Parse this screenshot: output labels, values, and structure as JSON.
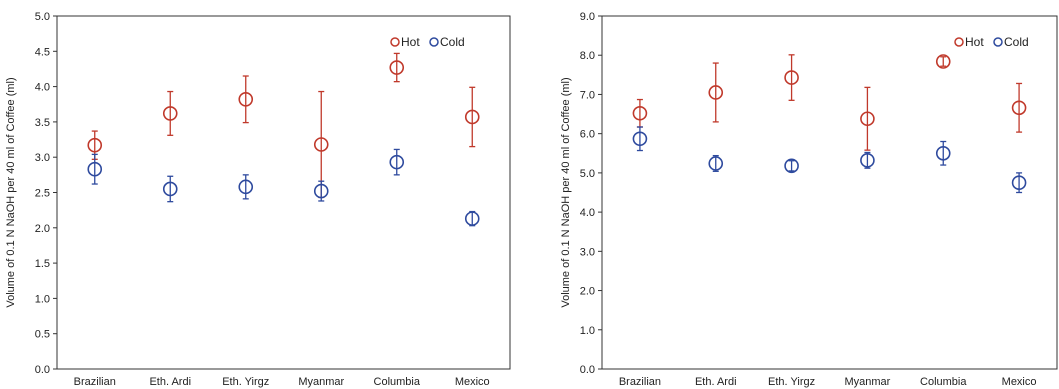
{
  "chart_data": [
    {
      "type": "scatter",
      "title": "",
      "xlabel": "",
      "ylabel": "Volume of 0.1 N NaOH per 40 ml of Coffee (ml)",
      "ylim": [
        0,
        5
      ],
      "yticks": [
        "0.0",
        "0.5",
        "1.0",
        "1.5",
        "2.0",
        "2.5",
        "3.0",
        "3.5",
        "4.0",
        "4.5",
        "5.0"
      ],
      "categories": [
        "Brazilian",
        "Eth. Ardi",
        "Eth. Yirgz",
        "Myanmar",
        "Columbia",
        "Mexico"
      ],
      "grid": false,
      "legend_position": "top-right",
      "series": [
        {
          "name": "Hot",
          "color": "#c0392b",
          "values": [
            3.17,
            3.62,
            3.82,
            3.18,
            4.27,
            3.57
          ],
          "errors": [
            0.2,
            0.31,
            0.33,
            0.75,
            0.2,
            0.42
          ]
        },
        {
          "name": "Cold",
          "color": "#2e4a9e",
          "values": [
            2.83,
            2.55,
            2.58,
            2.52,
            2.93,
            2.13
          ],
          "errors": [
            0.21,
            0.18,
            0.17,
            0.14,
            0.18,
            0.1
          ]
        }
      ]
    },
    {
      "type": "scatter",
      "title": "",
      "xlabel": "",
      "ylabel": "Volume of 0.1 N NaOH per 40 ml of Coffee (ml)",
      "ylim": [
        0,
        9
      ],
      "yticks": [
        "0.0",
        "1.0",
        "2.0",
        "3.0",
        "4.0",
        "5.0",
        "6.0",
        "7.0",
        "8.0",
        "9.0"
      ],
      "categories": [
        "Brazilian",
        "Eth. Ardi",
        "Eth. Yirgz",
        "Myanmar",
        "Columbia",
        "Mexico"
      ],
      "grid": false,
      "legend_position": "top-right",
      "series": [
        {
          "name": "Hot",
          "color": "#c0392b",
          "values": [
            6.52,
            7.05,
            7.43,
            6.38,
            7.84,
            6.66
          ],
          "errors": [
            0.35,
            0.75,
            0.58,
            0.8,
            0.12,
            0.62
          ]
        },
        {
          "name": "Cold",
          "color": "#2e4a9e",
          "values": [
            5.87,
            5.24,
            5.18,
            5.32,
            5.5,
            4.75
          ],
          "errors": [
            0.3,
            0.2,
            0.13,
            0.2,
            0.3,
            0.25
          ]
        }
      ]
    }
  ]
}
